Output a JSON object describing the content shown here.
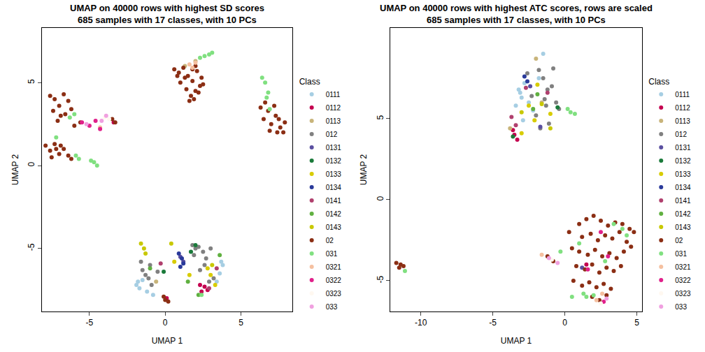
{
  "chart_data": [
    {
      "type": "scatter",
      "title": "UMAP on 40000 rows with highest SD scores\n685 samples with 17 classes, with 10 PCs",
      "x_label": "UMAP 1",
      "y_label": "UMAP 2",
      "xlim": [
        -8.15,
        8.4
      ],
      "ylim": [
        -8.8,
        8.3
      ],
      "xticks": [
        -5,
        0,
        5
      ],
      "yticks": [
        -5,
        0,
        5
      ],
      "legend": "right",
      "legend_title": "Class",
      "marker": "circle",
      "series": [
        {
          "name": "0111",
          "color": "#a6cee3",
          "x": [
            -1.9,
            -1.7,
            -1.5,
            -1.8,
            -1.2,
            3.6,
            3.8,
            3.4,
            -0.8,
            3.7
          ],
          "y": [
            -7.2,
            -7.4,
            -6.9,
            -7.0,
            -7.6,
            -6.5,
            -6.0,
            -7.0,
            -7.8,
            -5.8
          ]
        },
        {
          "name": "0112",
          "color": "#c4004f",
          "x": [
            2.4,
            2.6,
            2.8,
            -3.4,
            0.1,
            2.3
          ],
          "y": [
            -7.6,
            -7.3,
            -7.5,
            2.6,
            -8.0,
            -7.2
          ]
        },
        {
          "name": "0113",
          "color": "#c8b47a",
          "x": [
            2.0,
            1.3,
            -0.6
          ],
          "y": [
            6.3,
            6.0,
            -7.0
          ]
        },
        {
          "name": "012",
          "color": "#808080",
          "x": [
            -1.5,
            -1.3,
            -1.0,
            -0.9,
            -1.6,
            1.8,
            2.0,
            2.2,
            2.5,
            2.7,
            3.0,
            1.9,
            2.3,
            3.2,
            2.9,
            -0.5,
            2.6,
            -1.1
          ],
          "y": [
            -6.3,
            -6.6,
            -6.0,
            -7.2,
            -5.8,
            -4.8,
            -5.0,
            -4.9,
            -5.2,
            -5.6,
            -5.0,
            -5.4,
            -6.3,
            -6.8,
            -7.0,
            -6.4,
            -6.0,
            -6.8
          ]
        },
        {
          "name": "0131",
          "color": "#5a4fa0",
          "x": [
            1.0,
            1.2
          ],
          "y": [
            -5.5,
            -5.8
          ]
        },
        {
          "name": "0132",
          "color": "#1a7a3a",
          "x": [
            2.0,
            1.7,
            -0.1
          ],
          "y": [
            -4.8,
            -5.2,
            -6.4
          ]
        },
        {
          "name": "0133",
          "color": "#d8cc00",
          "x": [
            2.8,
            3.0,
            3.3,
            1.6,
            0.6
          ],
          "y": [
            -6.2,
            -6.6,
            -7.2,
            -6.6,
            -5.8
          ]
        },
        {
          "name": "0134",
          "color": "#2a3a9a",
          "x": [
            0.9,
            1.1,
            1.2,
            1.0
          ],
          "y": [
            -5.3,
            -5.6,
            -5.9,
            -6.1
          ]
        },
        {
          "name": "0141",
          "color": "#b0406e",
          "x": [
            2.9,
            3.4,
            -0.3
          ],
          "y": [
            -7.4,
            -6.2,
            -5.9
          ]
        },
        {
          "name": "0142",
          "color": "#60b040",
          "x": [
            1.5,
            3.6,
            -1.0,
            2.2
          ],
          "y": [
            -7.0,
            -5.4,
            -6.2,
            -7.8
          ]
        },
        {
          "name": "0143",
          "color": "#c8c800",
          "x": [
            -1.6,
            -1.4,
            -1.3,
            0.4,
            3.1
          ],
          "y": [
            -4.7,
            -5.0,
            -5.3,
            -4.7,
            -6.0
          ]
        },
        {
          "name": "02",
          "color": "#8b2e14",
          "x": [
            0.6,
            0.9,
            1.2,
            1.5,
            1.8,
            2.1,
            2.4,
            1.0,
            1.4,
            1.7,
            2.0,
            2.3,
            1.6,
            1.9,
            2.2,
            1.3,
            1.8,
            2.5,
            0.8,
            2.0,
            6.5,
            6.8,
            7.0,
            7.3,
            7.6,
            7.8,
            7.2,
            6.9,
            7.5,
            6.6,
            7.4,
            7.9,
            6.3,
            -7.6,
            -7.3,
            -7.0,
            -6.7,
            -6.4,
            -7.4,
            -6.9,
            -6.2,
            -7.1,
            -6.6,
            -3.5,
            -3.3,
            -5.6,
            -6.0,
            -7.9,
            -7.6,
            -7.3,
            -7.0,
            -6.7,
            -6.4,
            -7.5,
            -6.9,
            -6.2,
            -7.2,
            0.0,
            0.2,
            -0.1
          ],
          "y": [
            5.8,
            5.6,
            5.9,
            5.4,
            5.1,
            5.7,
            5.3,
            5.0,
            4.6,
            4.2,
            4.5,
            4.8,
            3.9,
            4.0,
            4.4,
            5.3,
            5.8,
            4.9,
            5.4,
            6.0,
            2.8,
            3.3,
            2.5,
            3.0,
            2.3,
            2.0,
            3.6,
            2.1,
            2.8,
            3.8,
            2.0,
            2.6,
            3.5,
            4.2,
            4.0,
            3.6,
            4.3,
            3.9,
            3.3,
            3.0,
            3.4,
            2.7,
            3.1,
            2.8,
            2.6,
            2.6,
            2.4,
            1.2,
            0.9,
            1.3,
            0.7,
            1.0,
            0.6,
            0.5,
            1.2,
            0.4,
            1.0,
            -8.1,
            -8.2,
            -7.9
          ]
        },
        {
          "name": "031",
          "color": "#80e080",
          "x": [
            2.6,
            2.9,
            3.1,
            2.3,
            6.4,
            6.6,
            6.8,
            6.7,
            6.9,
            -6.0,
            -6.3,
            -5.7,
            -4.7,
            -4.5,
            -4.9,
            -7.2,
            -5.9,
            2.4
          ],
          "y": [
            6.6,
            6.7,
            6.8,
            6.5,
            5.3,
            5.0,
            4.4,
            4.1,
            3.4,
            3.1,
            2.9,
            0.4,
            0.2,
            0.0,
            0.3,
            1.7,
            0.6,
            -7.8
          ]
        },
        {
          "name": "0321",
          "color": "#f5c0a0",
          "x": [
            1.6,
            1.8,
            2.0,
            -4.3
          ],
          "y": [
            6.1,
            5.9,
            6.2,
            2.3
          ]
        },
        {
          "name": "0322",
          "color": "#e0208a",
          "x": [
            -5.5,
            -5.0,
            -4.6,
            -4.3
          ],
          "y": [
            2.6,
            2.4,
            2.7,
            2.2
          ]
        },
        {
          "name": "0323",
          "color": "#fff8f0",
          "x": [
            -4.0,
            -3.7
          ],
          "y": [
            2.9,
            2.8
          ]
        },
        {
          "name": "033",
          "color": "#f0a0e0",
          "x": [
            -4.2,
            -3.9,
            -5.2
          ],
          "y": [
            2.7,
            3.0,
            2.5
          ]
        }
      ]
    },
    {
      "type": "scatter",
      "title": "UMAP on 40000 rows with highest ATC scores, rows are scaled\n685 samples with 17 classes, with 10 PCs",
      "x_label": "UMAP 1",
      "y_label": "UMAP 2",
      "xlim": [
        -12.1,
        5.35
      ],
      "ylim": [
        -6.9,
        10.6
      ],
      "xticks": [
        -10,
        -5,
        0,
        5
      ],
      "yticks": [
        -5,
        0,
        5
      ],
      "legend": "right",
      "legend_title": "Class",
      "marker": "circle",
      "series": [
        {
          "name": "0111",
          "color": "#a6cee3",
          "x": [
            -3.2,
            -3.0,
            -2.8,
            -2.5,
            -3.4,
            -2.2,
            -1.8,
            -2.9,
            -3.1,
            -1.5
          ],
          "y": [
            6.8,
            6.3,
            7.2,
            6.0,
            5.8,
            5.5,
            7.5,
            4.9,
            6.6,
            9.0
          ]
        },
        {
          "name": "0112",
          "color": "#c4004f",
          "x": [
            -3.5,
            -3.3,
            -3.6,
            1.5
          ],
          "y": [
            4.0,
            3.7,
            4.3,
            -4.0
          ]
        },
        {
          "name": "0113",
          "color": "#c8b47a",
          "x": [
            -2.0,
            -1.6,
            -3.8
          ],
          "y": [
            8.7,
            6.0,
            4.4
          ]
        },
        {
          "name": "012",
          "color": "#808080",
          "x": [
            -1.8,
            -1.5,
            -1.2,
            -0.9,
            -1.3,
            -2.0,
            -2.3,
            -0.6,
            -1.1,
            -1.7,
            -0.8,
            -2.6,
            -1.4,
            -0.4
          ],
          "y": [
            8.0,
            7.5,
            6.8,
            7.0,
            5.8,
            5.2,
            6.4,
            6.0,
            4.7,
            4.4,
            8.1,
            7.8,
            6.2,
            5.6
          ]
        },
        {
          "name": "0131",
          "color": "#5a4fa0",
          "x": [
            -1.7,
            1.2,
            -2.4
          ],
          "y": [
            4.5,
            -4.2,
            7.0
          ]
        },
        {
          "name": "0132",
          "color": "#1a7a3a",
          "x": [
            -0.5,
            -3.6
          ],
          "y": [
            5.7,
            3.9
          ]
        },
        {
          "name": "0133",
          "color": "#d8cc00",
          "x": [
            -2.5,
            -2.1,
            -1.0,
            -1.9,
            -3.0
          ],
          "y": [
            5.8,
            4.9,
            5.3,
            7.1,
            4.1
          ]
        },
        {
          "name": "0134",
          "color": "#2a3a9a",
          "x": [
            -2.8,
            -2.6
          ],
          "y": [
            7.6,
            7.3
          ]
        },
        {
          "name": "0141",
          "color": "#b0406e",
          "x": [
            -3.7,
            -2.7,
            -1.2,
            -3.4
          ],
          "y": [
            5.1,
            6.9,
            6.6,
            4.6
          ]
        },
        {
          "name": "0142",
          "color": "#60b040",
          "x": [
            -2.2,
            -1.9
          ],
          "y": [
            5.6,
            6.5
          ]
        },
        {
          "name": "0143",
          "color": "#c8c800",
          "x": [
            -3.0,
            -1.6,
            -1.0
          ],
          "y": [
            5.4,
            5.9,
            4.4
          ]
        },
        {
          "name": "02",
          "color": "#8b2e14",
          "x": [
            1.0,
            1.5,
            2.0,
            2.5,
            3.0,
            3.5,
            4.0,
            4.5,
            1.2,
            1.8,
            2.3,
            2.8,
            3.3,
            3.8,
            4.3,
            0.5,
            1.0,
            1.6,
            2.1,
            2.6,
            3.1,
            3.6,
            4.1,
            4.6,
            0.8,
            1.4,
            1.9,
            2.4,
            2.9,
            3.4,
            3.9,
            0.6,
            1.2,
            1.7,
            2.2,
            2.7,
            3.2,
            1.9,
            2.4,
            2.9,
            0.3,
            4.8,
            -11.7,
            -11.4,
            -11.2,
            -11.5,
            -1.2,
            -0.8
          ],
          "y": [
            -1.5,
            -1.2,
            -1.0,
            -1.3,
            -1.6,
            -1.4,
            -1.5,
            -1.8,
            -2.3,
            -2.1,
            -2.5,
            -2.2,
            -2.4,
            -2.0,
            -2.6,
            -3.0,
            -3.2,
            -3.4,
            -3.1,
            -3.5,
            -3.3,
            -3.6,
            -3.2,
            -2.9,
            -4.1,
            -4.3,
            -4.0,
            -4.5,
            -4.2,
            -4.4,
            -4.1,
            -5.0,
            -5.3,
            -5.1,
            -5.4,
            -5.2,
            -5.5,
            -6.0,
            -6.2,
            -5.9,
            -2.0,
            -2.0,
            -3.9,
            -4.0,
            -4.1,
            -4.2,
            -3.5,
            -3.8
          ]
        },
        {
          "name": "031",
          "color": "#80e080",
          "x": [
            -11.1,
            0.2,
            0.4,
            0.7,
            1.5,
            2.0,
            4.0,
            4.3,
            3.4,
            1.0,
            2.8,
            1.3,
            -0.3,
            0.5
          ],
          "y": [
            -4.4,
            5.6,
            5.4,
            5.3,
            -6.0,
            -5.9,
            -1.8,
            -2.2,
            -1.5,
            -2.7,
            -3.8,
            -5.8,
            -3.2,
            -6.0
          ]
        },
        {
          "name": "0321",
          "color": "#f5c0a0",
          "x": [
            -1.6,
            2.2,
            2.6
          ],
          "y": [
            -3.4,
            -6.2,
            -5.8
          ]
        },
        {
          "name": "0322",
          "color": "#e0208a",
          "x": [
            2.7,
            1.6,
            2.5,
            3.0
          ],
          "y": [
            -6.3,
            -4.3,
            -2.0,
            -3.5
          ]
        },
        {
          "name": "0323",
          "color": "#fff8f0",
          "x": [
            2.5,
            -0.9
          ],
          "y": [
            -6.4,
            -3.7
          ]
        },
        {
          "name": "033",
          "color": "#f0a0e0",
          "x": [
            -1.1,
            -0.5,
            2.9
          ],
          "y": [
            -3.6,
            -3.9,
            -6.1
          ]
        }
      ]
    }
  ]
}
